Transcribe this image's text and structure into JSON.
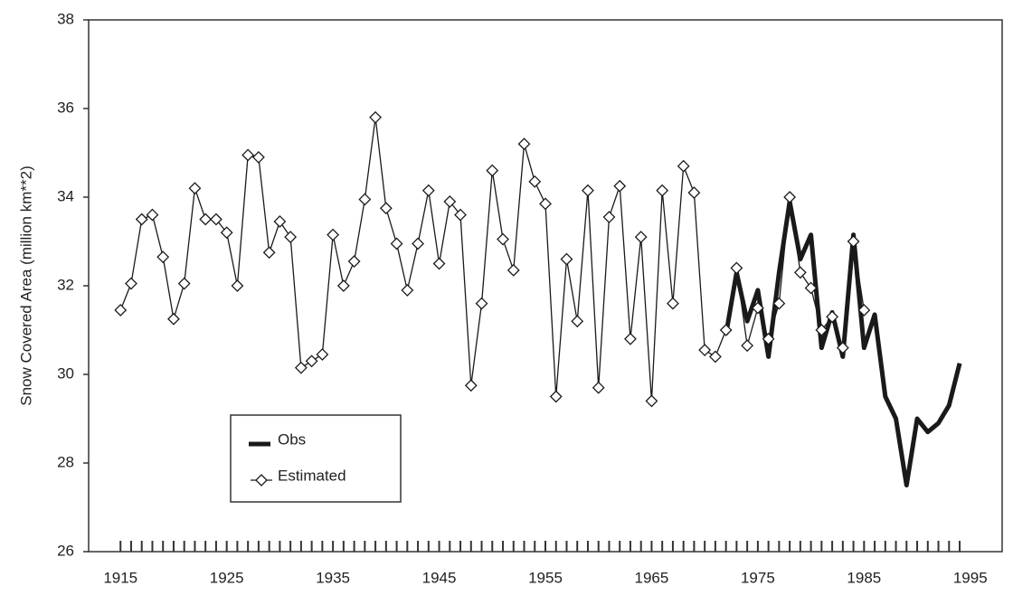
{
  "chart_data": {
    "type": "line",
    "y_label": "Snow Covered Area (million km**2)",
    "x": [
      1915,
      1916,
      1917,
      1918,
      1919,
      1920,
      1921,
      1922,
      1923,
      1924,
      1925,
      1926,
      1927,
      1928,
      1929,
      1930,
      1931,
      1932,
      1933,
      1934,
      1935,
      1936,
      1937,
      1938,
      1939,
      1940,
      1941,
      1942,
      1943,
      1944,
      1945,
      1946,
      1947,
      1948,
      1949,
      1950,
      1951,
      1952,
      1953,
      1954,
      1955,
      1956,
      1957,
      1958,
      1959,
      1960,
      1961,
      1962,
      1963,
      1964,
      1965,
      1966,
      1967,
      1968,
      1969,
      1970,
      1971,
      1972,
      1973,
      1974,
      1975,
      1976,
      1977,
      1978,
      1979,
      1980,
      1981,
      1982,
      1983,
      1984,
      1985,
      1986,
      1987,
      1988,
      1989,
      1990,
      1991,
      1992,
      1993,
      1994
    ],
    "series": [
      {
        "name": "Obs",
        "color": "#1a1a1a",
        "marker": "none",
        "values": [
          null,
          null,
          null,
          null,
          null,
          null,
          null,
          null,
          null,
          null,
          null,
          null,
          null,
          null,
          null,
          null,
          null,
          null,
          null,
          null,
          null,
          null,
          null,
          null,
          null,
          null,
          null,
          null,
          null,
          null,
          null,
          null,
          null,
          null,
          null,
          null,
          null,
          null,
          null,
          null,
          null,
          null,
          null,
          null,
          null,
          null,
          null,
          null,
          null,
          null,
          null,
          null,
          null,
          null,
          null,
          null,
          null,
          30.9,
          32.3,
          31.2,
          31.9,
          30.4,
          32.3,
          33.9,
          32.6,
          33.15,
          30.6,
          31.4,
          30.4,
          33.15,
          30.6,
          31.35,
          29.5,
          29.0,
          27.5,
          29.0,
          28.7,
          28.9,
          29.3,
          30.25
        ]
      },
      {
        "name": "Estimated",
        "color": "#1a1a1a",
        "marker": "diamond",
        "values": [
          31.45,
          32.05,
          33.5,
          33.6,
          32.65,
          31.25,
          32.05,
          34.2,
          33.5,
          33.5,
          33.2,
          32.0,
          34.95,
          34.9,
          32.75,
          33.45,
          33.1,
          30.15,
          30.3,
          30.45,
          33.15,
          32.0,
          32.55,
          33.95,
          35.8,
          33.75,
          32.95,
          31.9,
          32.95,
          34.15,
          32.5,
          33.9,
          33.6,
          29.75,
          31.6,
          34.6,
          33.05,
          32.35,
          35.2,
          34.35,
          33.85,
          29.5,
          32.6,
          31.2,
          34.15,
          29.7,
          33.55,
          34.25,
          30.8,
          33.1,
          29.4,
          34.15,
          31.6,
          34.7,
          34.1,
          30.55,
          30.4,
          31.0,
          32.4,
          30.65,
          31.5,
          30.8,
          31.6,
          34.0,
          32.3,
          31.95,
          31.0,
          31.3,
          30.6,
          33.0,
          31.45,
          null,
          null,
          null,
          null,
          null,
          null,
          null,
          null,
          null
        ]
      }
    ],
    "xlim": [
      1912,
      1998
    ],
    "xticks": [
      1915,
      1925,
      1935,
      1945,
      1955,
      1965,
      1975,
      1985,
      1995
    ],
    "ylim": [
      26,
      38
    ],
    "yticks": [
      26,
      28,
      30,
      32,
      34,
      36,
      38
    ],
    "grid": false,
    "legend": "lower left"
  }
}
